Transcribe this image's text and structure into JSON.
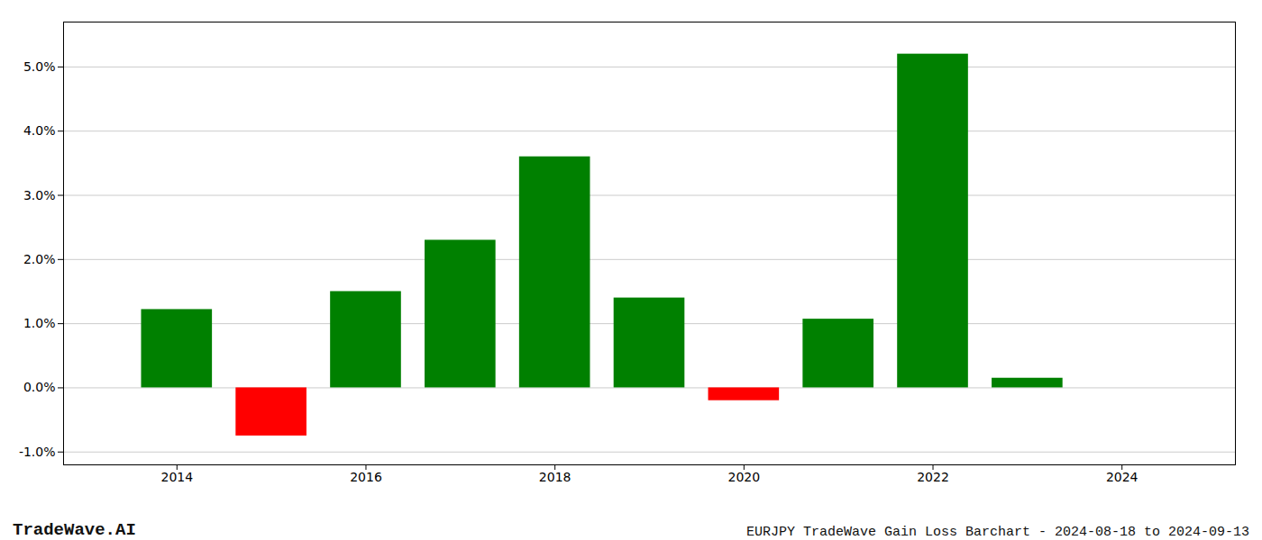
{
  "chart_data": {
    "type": "bar",
    "title": "EURJPY TradeWave Gain Loss Barchart - 2024-08-18 to 2024-09-13",
    "annotations": [
      "TradeWave.AI"
    ],
    "x": [
      2014,
      2015,
      2016,
      2017,
      2018,
      2019,
      2020,
      2021,
      2022,
      2023
    ],
    "values": [
      0.0122,
      -0.0075,
      0.015,
      0.023,
      0.036,
      0.014,
      -0.002,
      0.0107,
      0.052,
      0.0015
    ],
    "colors": [
      "#008000",
      "#ff0000",
      "#008000",
      "#008000",
      "#008000",
      "#008000",
      "#ff0000",
      "#008000",
      "#008000",
      "#008000"
    ],
    "xlim": [
      2012.8,
      2025.2
    ],
    "xticks": [
      2014,
      2016,
      2018,
      2020,
      2022,
      2024
    ],
    "ylim": [
      -0.012,
      0.057
    ],
    "yticks": [
      {
        "value": -0.01,
        "label": "-1.0%"
      },
      {
        "value": 0.0,
        "label": "0.0%"
      },
      {
        "value": 0.01,
        "label": "1.0%"
      },
      {
        "value": 0.02,
        "label": "2.0%"
      },
      {
        "value": 0.03,
        "label": "3.0%"
      },
      {
        "value": 0.04,
        "label": "4.0%"
      },
      {
        "value": 0.05,
        "label": "5.0%"
      }
    ],
    "grid": true
  }
}
